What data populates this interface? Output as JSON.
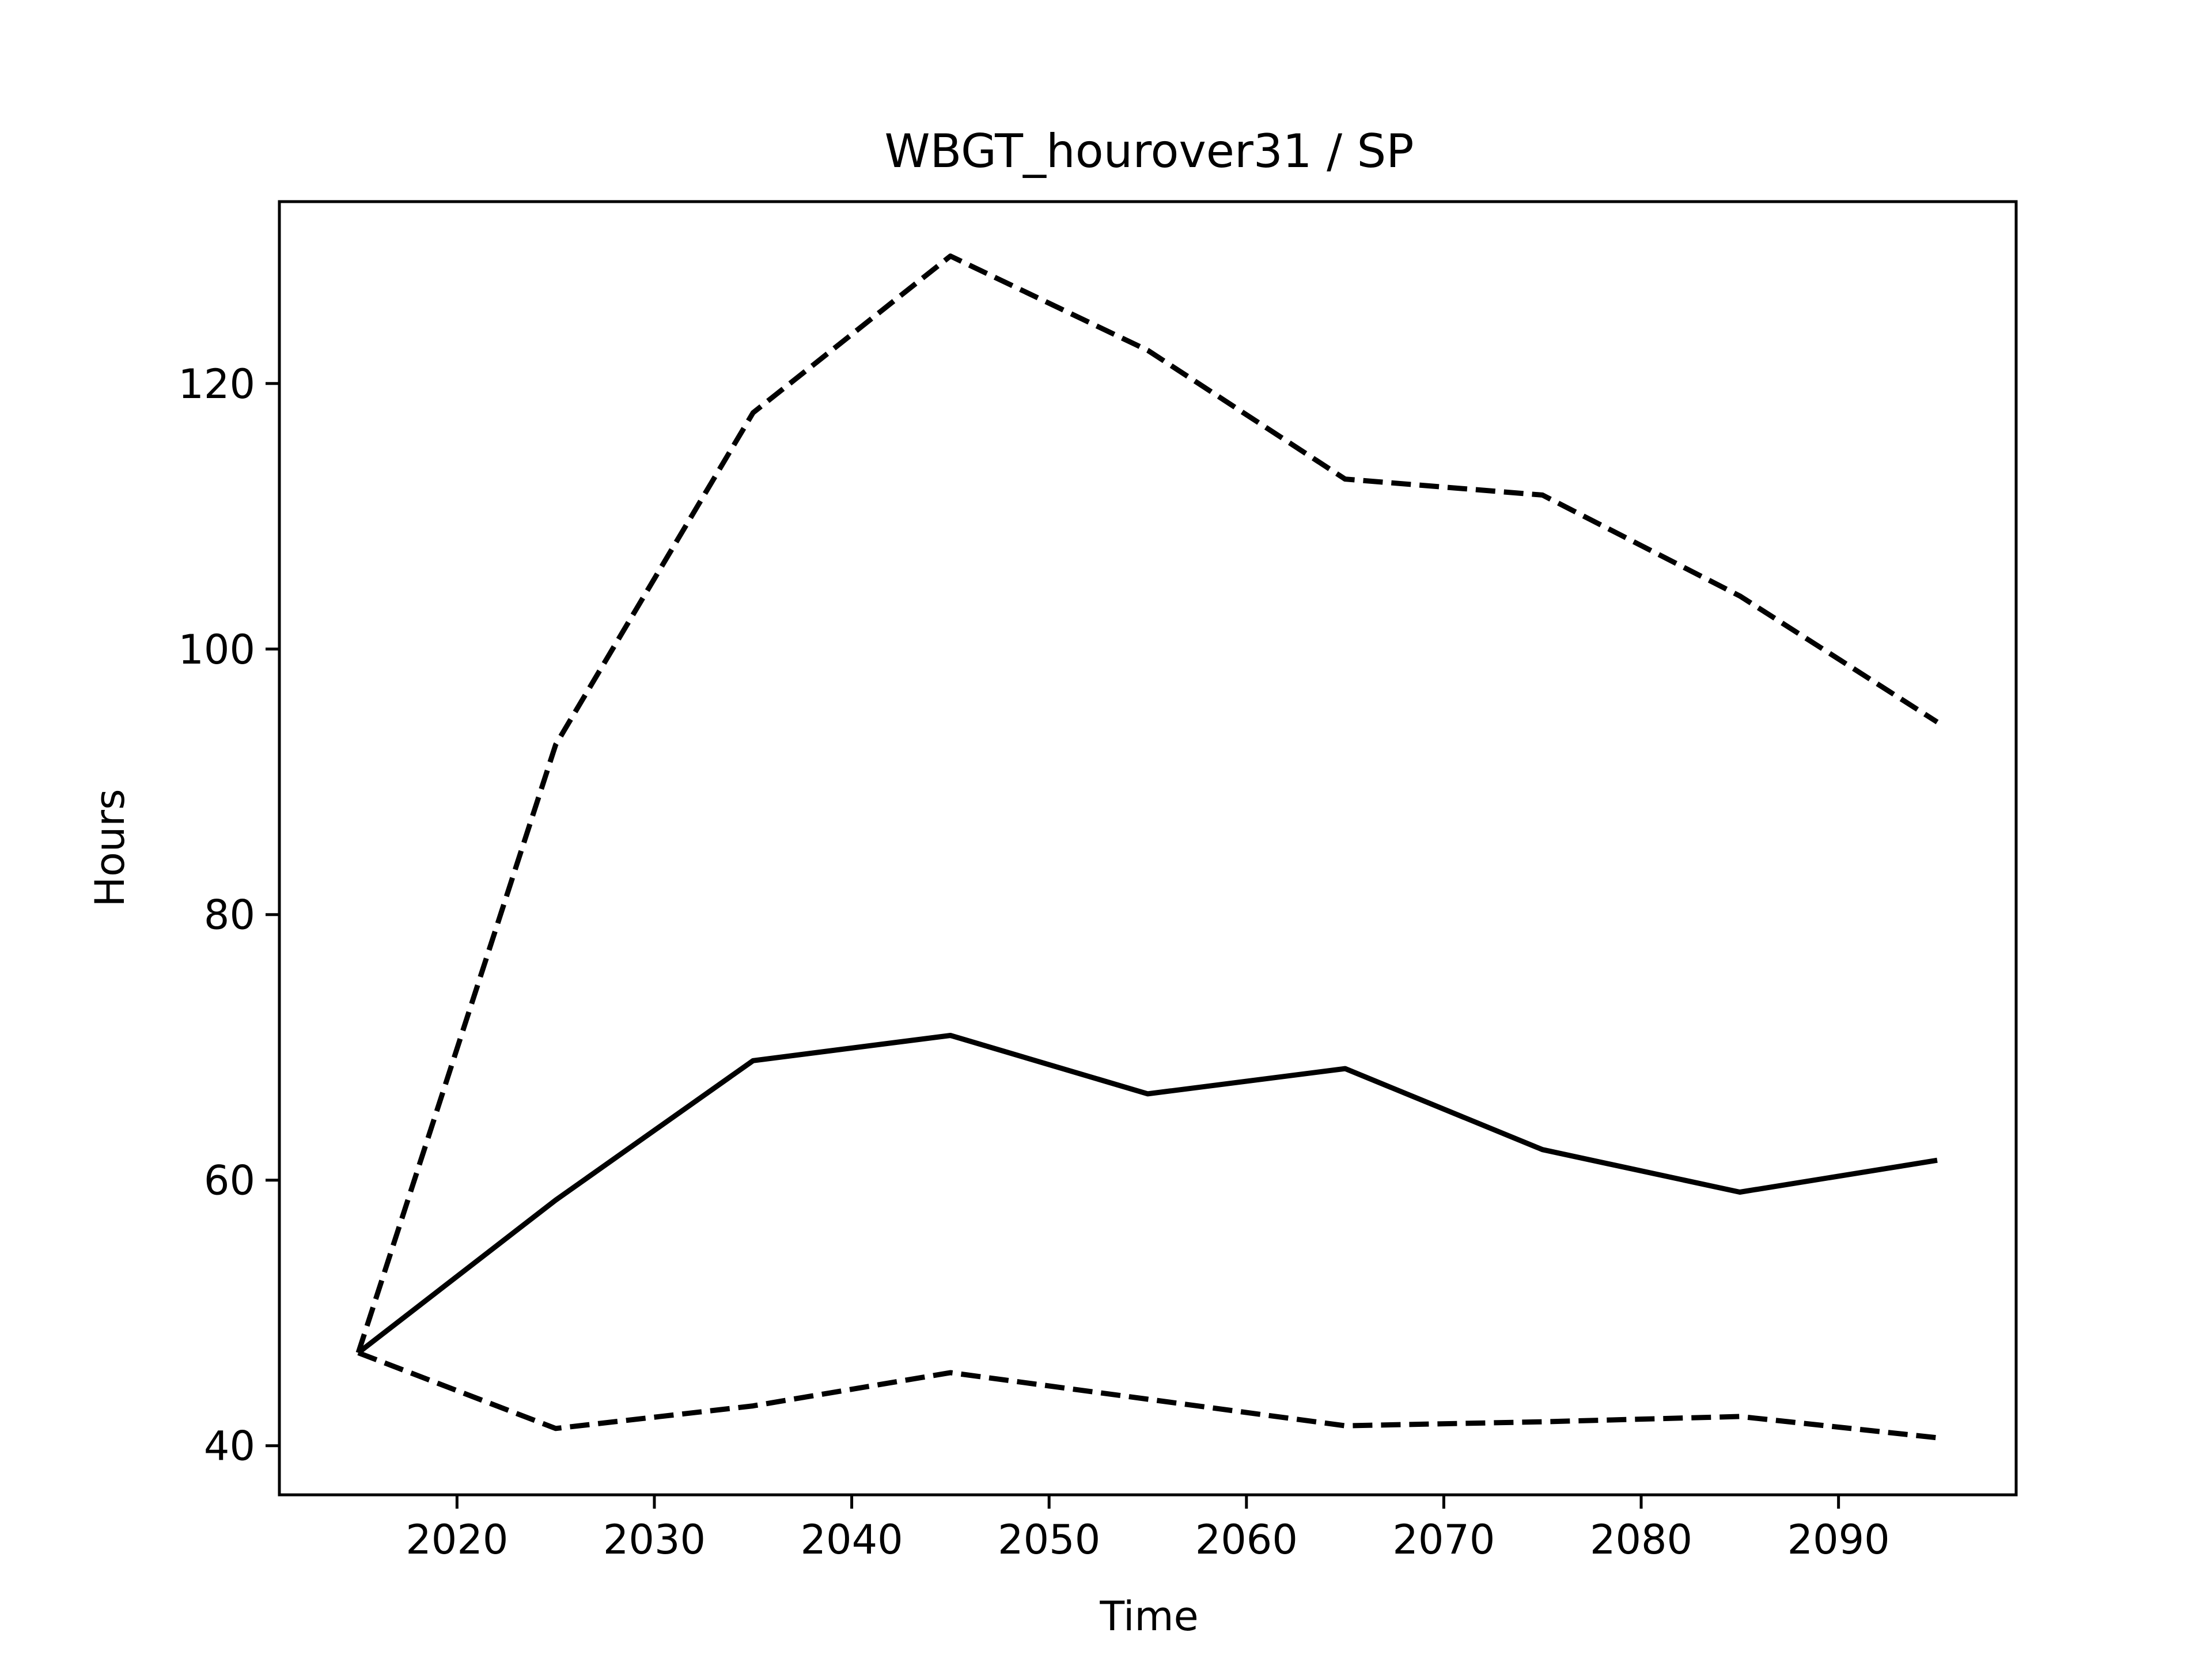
{
  "chart_data": {
    "type": "line",
    "title": "WBGT_hourover31 / SP",
    "xlabel": "Time",
    "ylabel": "Hours",
    "xlim": [
      2011,
      2099
    ],
    "ylim": [
      36.3,
      133.7
    ],
    "grid": false,
    "x_ticks": [
      2020,
      2030,
      2040,
      2050,
      2060,
      2070,
      2080,
      2090
    ],
    "y_ticks": [
      40,
      60,
      80,
      100,
      120
    ],
    "x": [
      2015,
      2025,
      2035,
      2045,
      2055,
      2065,
      2075,
      2085,
      2095
    ],
    "series": [
      {
        "style": "dashed",
        "color": "#000000",
        "values": [
          47.0,
          92.8,
          117.8,
          129.6,
          122.5,
          112.8,
          111.6,
          104.0,
          94.5
        ]
      },
      {
        "style": "solid",
        "color": "#000000",
        "values": [
          47.0,
          58.5,
          69.0,
          70.9,
          66.5,
          68.4,
          62.3,
          59.1,
          61.5
        ]
      },
      {
        "style": "dashed",
        "color": "#000000",
        "values": [
          47.0,
          41.3,
          43.0,
          45.5,
          43.5,
          41.5,
          41.8,
          42.2,
          40.6
        ]
      }
    ]
  }
}
